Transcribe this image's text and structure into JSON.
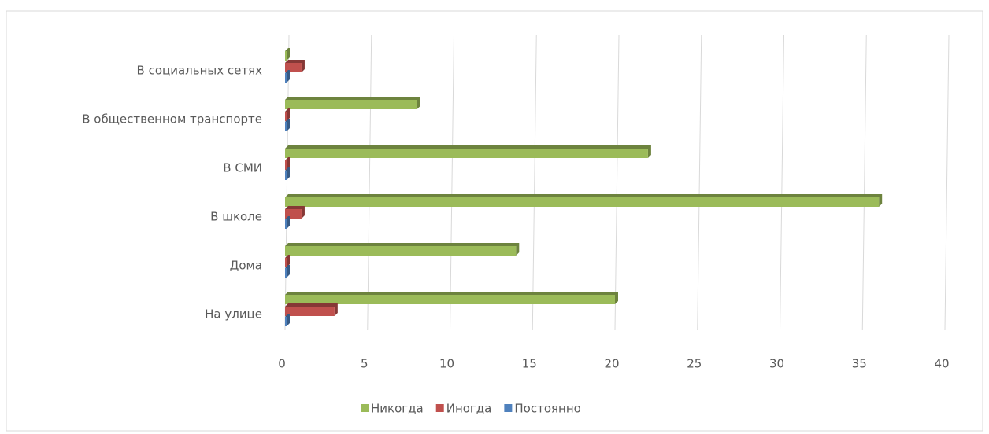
{
  "chart_data": {
    "type": "bar",
    "orientation": "horizontal",
    "categories": [
      "На улице",
      "Дома",
      "В школе",
      "В СМИ",
      "В общественном транспорте",
      "В социальных сетях"
    ],
    "series": [
      {
        "name": "Никогда",
        "color": "#9bbb59",
        "values": [
          20,
          14,
          36,
          22,
          8,
          0
        ]
      },
      {
        "name": "Иногда",
        "color": "#c0504d",
        "values": [
          3,
          0,
          1,
          0,
          0,
          1
        ]
      },
      {
        "name": "Постоянно",
        "color": "#4f81bd",
        "values": [
          0,
          0,
          0,
          0,
          0,
          0
        ]
      }
    ],
    "xlim": [
      0,
      40
    ],
    "xticks": [
      0,
      5,
      10,
      15,
      20,
      25,
      30,
      35,
      40
    ],
    "grid": true,
    "legend": "bottom"
  }
}
